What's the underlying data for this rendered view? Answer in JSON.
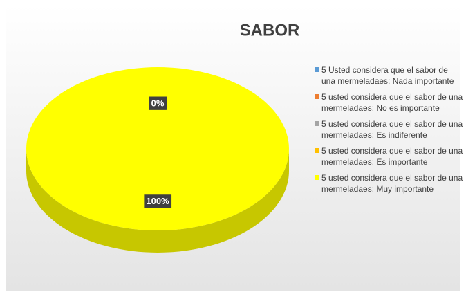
{
  "chart_data": {
    "type": "pie",
    "title": "SABOR",
    "categories": [
      "5 Usted considera que el sabor de una mermeladaes: Nada importante",
      "5 usted considera que el sabor de una mermeladaes: No es importante",
      "5 usted considera que el sabor de una mermeladaes: Es indiferente",
      "5 usted considera que el sabor de una mermeladaes: Es importante",
      "5 usted considera que el sabor de una mermeladaes: Muy importante"
    ],
    "values": [
      0,
      0,
      0,
      0,
      100
    ],
    "value_labels": [
      "0%",
      "0%",
      "0%",
      "0%",
      "100%"
    ],
    "colors": [
      "#5b9bd5",
      "#ed7d31",
      "#a5a5a5",
      "#ffc000",
      "#ffff00"
    ],
    "legend": "right"
  }
}
